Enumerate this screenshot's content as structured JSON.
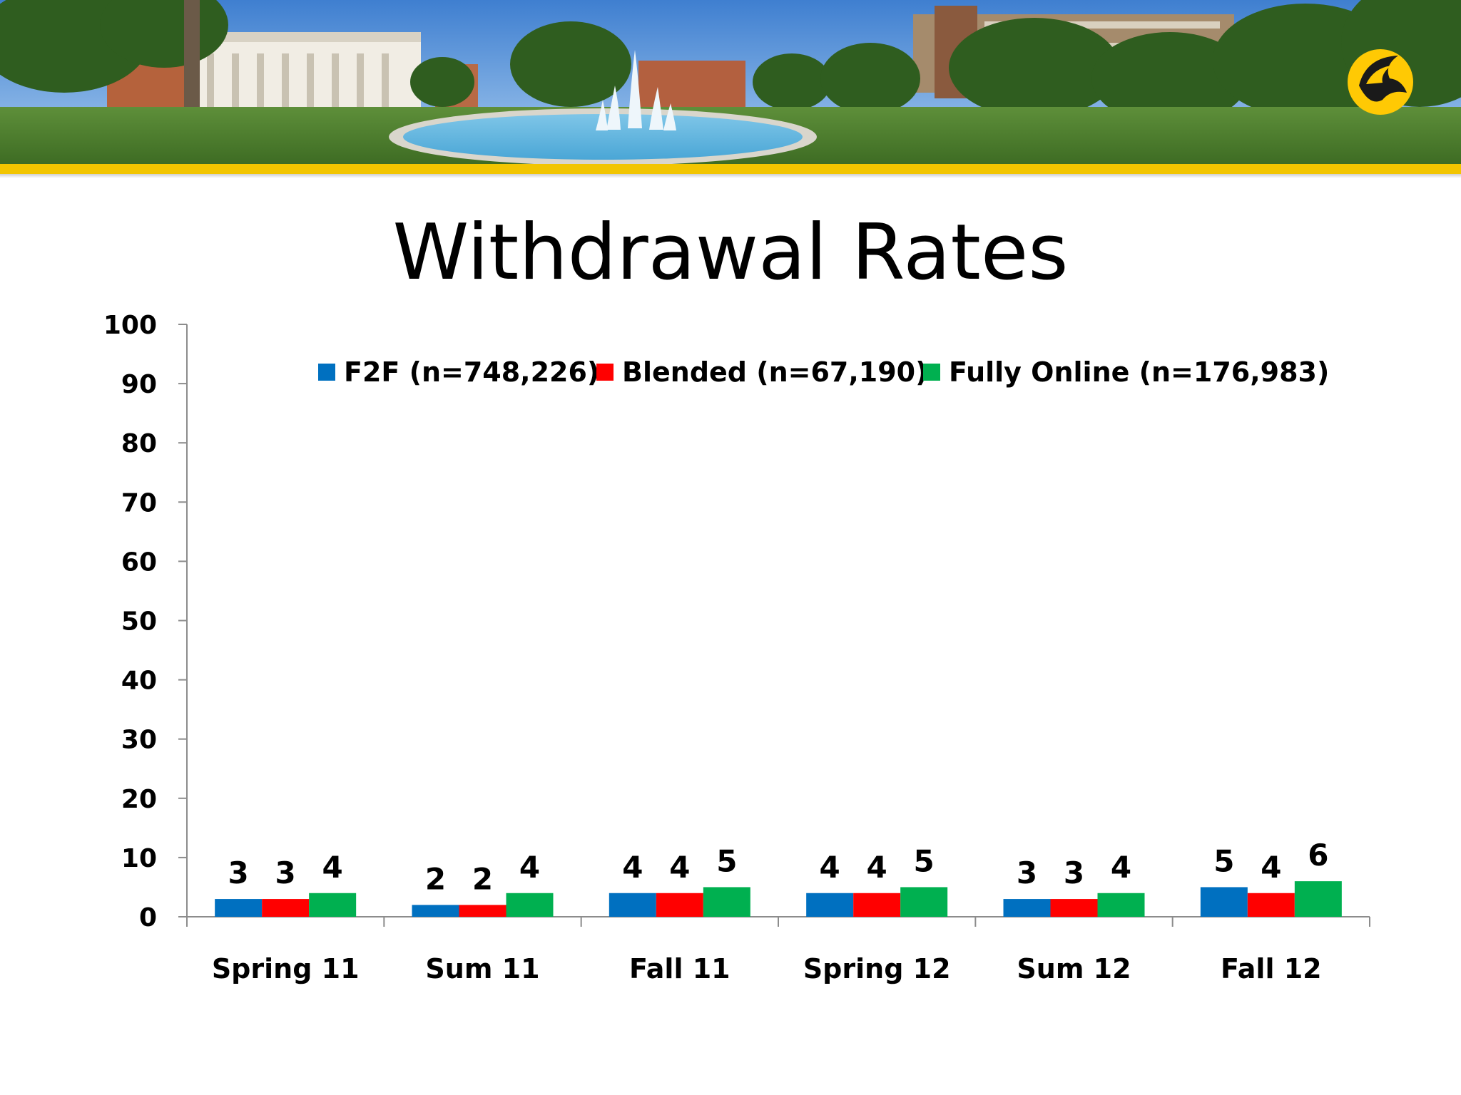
{
  "slide": {
    "title": "Withdrawal Rates",
    "logo_icon": "pegasus-logo-icon",
    "banner_image": "campus-fountain-photo"
  },
  "colors": {
    "accent_gold": "#FFC904",
    "f2f": "#0070C0",
    "blended": "#FF0000",
    "fully_online": "#00B050"
  },
  "chart_data": {
    "type": "bar",
    "title": "",
    "xlabel": "",
    "ylabel": "",
    "ylim": [
      0,
      100
    ],
    "yticks": [
      0,
      10,
      20,
      30,
      40,
      50,
      60,
      70,
      80,
      90,
      100
    ],
    "categories": [
      "Spring 11",
      "Sum 11",
      "Fall 11",
      "Spring 12",
      "Sum 12",
      "Fall 12"
    ],
    "series": [
      {
        "name": "F2F (n=748,226)",
        "color": "#0070C0",
        "values": [
          3,
          2,
          4,
          4,
          3,
          5
        ]
      },
      {
        "name": "Blended (n=67,190)",
        "color": "#FF0000",
        "values": [
          3,
          2,
          4,
          4,
          3,
          4
        ]
      },
      {
        "name": "Fully Online (n=176,983)",
        "color": "#00B050",
        "values": [
          4,
          4,
          5,
          5,
          4,
          6
        ]
      }
    ],
    "data_labels": true,
    "legend_position": "top",
    "grid": false
  }
}
